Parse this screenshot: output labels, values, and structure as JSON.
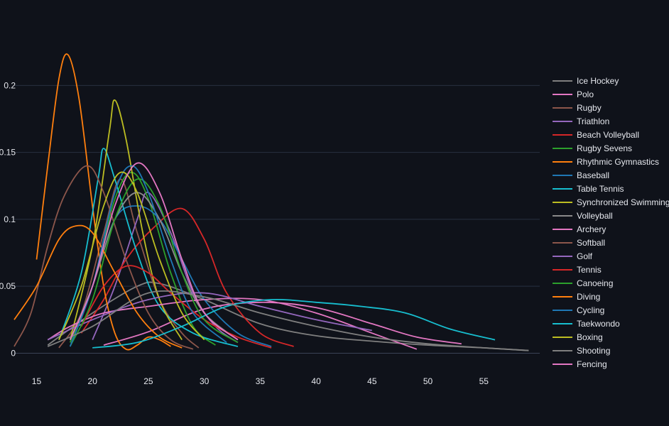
{
  "chart_data": {
    "type": "line",
    "title": "",
    "xlabel": "",
    "ylabel": "",
    "xlim": [
      13,
      60
    ],
    "ylim": [
      -0.004,
      0.232
    ],
    "x_ticks": [
      15,
      20,
      25,
      30,
      35,
      40,
      45,
      50,
      55
    ],
    "y_ticks": [
      0,
      0.05,
      0.1,
      0.15,
      0.2
    ],
    "y_tick_labels": [
      "0",
      "0.05",
      "0.1",
      "0.15",
      "0.2"
    ],
    "grid": "horizontal",
    "legend_position": "right",
    "background": "#0f121a",
    "gridline_color": "#283040",
    "series": [
      {
        "name": "Ice Hockey",
        "color": "#7f7f7f",
        "points": [
          [
            16,
            0.006
          ],
          [
            20,
            0.03
          ],
          [
            24,
            0.05
          ],
          [
            26,
            0.052
          ],
          [
            30,
            0.04
          ],
          [
            35,
            0.022
          ],
          [
            40,
            0.013
          ],
          [
            45,
            0.009
          ],
          [
            50,
            0.006
          ],
          [
            55,
            0.004
          ],
          [
            59,
            0.002
          ]
        ]
      },
      {
        "name": "Polo",
        "color": "#e377c2",
        "points": [
          [
            21,
            0.006
          ],
          [
            25,
            0.016
          ],
          [
            30,
            0.033
          ],
          [
            35,
            0.038
          ],
          [
            40,
            0.034
          ],
          [
            45,
            0.022
          ],
          [
            49,
            0.012
          ],
          [
            53,
            0.007
          ]
        ]
      },
      {
        "name": "Rugby",
        "color": "#8c564b",
        "points": [
          [
            17,
            0.004
          ],
          [
            19,
            0.03
          ],
          [
            21,
            0.09
          ],
          [
            22.5,
            0.13
          ],
          [
            24,
            0.09
          ],
          [
            26,
            0.04
          ],
          [
            28,
            0.015
          ],
          [
            29.5,
            0.004
          ]
        ]
      },
      {
        "name": "Triathlon",
        "color": "#9467bd",
        "points": [
          [
            20,
            0.01
          ],
          [
            22,
            0.05
          ],
          [
            24,
            0.1
          ],
          [
            25,
            0.12
          ],
          [
            27,
            0.09
          ],
          [
            29,
            0.045
          ],
          [
            31,
            0.02
          ],
          [
            33,
            0.008
          ]
        ]
      },
      {
        "name": "Beach Volleyball",
        "color": "#d62728",
        "points": [
          [
            19,
            0.015
          ],
          [
            21,
            0.04
          ],
          [
            23,
            0.07
          ],
          [
            25.5,
            0.094
          ],
          [
            28,
            0.108
          ],
          [
            30,
            0.085
          ],
          [
            32,
            0.045
          ],
          [
            35,
            0.015
          ],
          [
            38,
            0.005
          ]
        ]
      },
      {
        "name": "Rugby Sevens",
        "color": "#2ca02c",
        "points": [
          [
            18,
            0.008
          ],
          [
            20,
            0.05
          ],
          [
            22,
            0.115
          ],
          [
            23.5,
            0.135
          ],
          [
            25,
            0.115
          ],
          [
            27,
            0.06
          ],
          [
            29,
            0.02
          ],
          [
            31,
            0.006
          ]
        ]
      },
      {
        "name": "Rhythmic Gymnastics",
        "color": "#ff7f0e",
        "points": [
          [
            15,
            0.07
          ],
          [
            16,
            0.14
          ],
          [
            17,
            0.205
          ],
          [
            17.8,
            0.223
          ],
          [
            18.8,
            0.19
          ],
          [
            20,
            0.11
          ],
          [
            21,
            0.05
          ],
          [
            22,
            0.015
          ],
          [
            23,
            0.003
          ],
          [
            24,
            0.006
          ],
          [
            25,
            0.012
          ],
          [
            26,
            0.01
          ],
          [
            27,
            0.005
          ]
        ]
      },
      {
        "name": "Baseball",
        "color": "#1f77b4",
        "points": [
          [
            18,
            0.01
          ],
          [
            20,
            0.05
          ],
          [
            22,
            0.1
          ],
          [
            24,
            0.11
          ],
          [
            26,
            0.1
          ],
          [
            28,
            0.07
          ],
          [
            30,
            0.04
          ],
          [
            33,
            0.015
          ],
          [
            36,
            0.005
          ]
        ]
      },
      {
        "name": "Table Tennis",
        "color": "#17becf",
        "points": [
          [
            17,
            0.01
          ],
          [
            19,
            0.06
          ],
          [
            20.5,
            0.13
          ],
          [
            21,
            0.153
          ],
          [
            22,
            0.13
          ],
          [
            24,
            0.075
          ],
          [
            26,
            0.035
          ],
          [
            29,
            0.015
          ],
          [
            33,
            0.005
          ]
        ]
      },
      {
        "name": "Synchronized Swimming",
        "color": "#bcbd22",
        "points": [
          [
            18,
            0.01
          ],
          [
            20,
            0.08
          ],
          [
            21.5,
            0.165
          ],
          [
            22,
            0.189
          ],
          [
            23,
            0.16
          ],
          [
            24.5,
            0.09
          ],
          [
            26,
            0.04
          ],
          [
            28,
            0.01
          ]
        ]
      },
      {
        "name": "Volleyball",
        "color": "#8a8a8a",
        "points": [
          [
            18,
            0.01
          ],
          [
            20,
            0.05
          ],
          [
            22,
            0.1
          ],
          [
            24,
            0.12
          ],
          [
            26,
            0.1
          ],
          [
            28,
            0.06
          ],
          [
            30,
            0.03
          ],
          [
            33,
            0.01
          ]
        ]
      },
      {
        "name": "Archery",
        "color": "#e377c2",
        "points": [
          [
            16,
            0.01
          ],
          [
            18,
            0.02
          ],
          [
            21,
            0.03
          ],
          [
            25,
            0.035
          ],
          [
            30,
            0.04
          ],
          [
            35,
            0.04
          ],
          [
            40,
            0.03
          ],
          [
            45,
            0.015
          ],
          [
            49,
            0.003
          ]
        ]
      },
      {
        "name": "Softball",
        "color": "#8c564b",
        "points": [
          [
            13,
            0.005
          ],
          [
            14.5,
            0.03
          ],
          [
            16,
            0.08
          ],
          [
            17.5,
            0.118
          ],
          [
            19.5,
            0.14
          ],
          [
            21,
            0.12
          ],
          [
            23,
            0.07
          ],
          [
            25,
            0.03
          ],
          [
            27,
            0.01
          ],
          [
            29,
            0.003
          ]
        ]
      },
      {
        "name": "Golf",
        "color": "#9467bd",
        "points": [
          [
            16,
            0.01
          ],
          [
            20,
            0.025
          ],
          [
            25,
            0.04
          ],
          [
            30,
            0.045
          ],
          [
            35,
            0.035
          ],
          [
            40,
            0.025
          ],
          [
            45,
            0.017
          ]
        ]
      },
      {
        "name": "Tennis",
        "color": "#d62728",
        "points": [
          [
            19,
            0.02
          ],
          [
            21,
            0.05
          ],
          [
            23,
            0.065
          ],
          [
            25,
            0.06
          ],
          [
            27,
            0.045
          ],
          [
            30,
            0.025
          ],
          [
            33,
            0.012
          ],
          [
            36,
            0.004
          ]
        ]
      },
      {
        "name": "Canoeing",
        "color": "#2ca02c",
        "points": [
          [
            18,
            0.005
          ],
          [
            20,
            0.04
          ],
          [
            22,
            0.1
          ],
          [
            24,
            0.13
          ],
          [
            26,
            0.11
          ],
          [
            28,
            0.06
          ],
          [
            30,
            0.025
          ],
          [
            33,
            0.008
          ]
        ]
      },
      {
        "name": "Diving",
        "color": "#ff7f0e",
        "points": [
          [
            13,
            0.025
          ],
          [
            15,
            0.05
          ],
          [
            17,
            0.085
          ],
          [
            18.5,
            0.095
          ],
          [
            20,
            0.09
          ],
          [
            22,
            0.06
          ],
          [
            24,
            0.03
          ],
          [
            26,
            0.012
          ],
          [
            28,
            0.004
          ]
        ]
      },
      {
        "name": "Cycling",
        "color": "#1f77b4",
        "points": [
          [
            18,
            0.005
          ],
          [
            20,
            0.05
          ],
          [
            22,
            0.12
          ],
          [
            23.5,
            0.14
          ],
          [
            25,
            0.12
          ],
          [
            27,
            0.07
          ],
          [
            29,
            0.03
          ],
          [
            32,
            0.008
          ]
        ]
      },
      {
        "name": "Taekwondo",
        "color": "#17becf",
        "points": [
          [
            20,
            0.004
          ],
          [
            24,
            0.008
          ],
          [
            28,
            0.02
          ],
          [
            32,
            0.035
          ],
          [
            36,
            0.04
          ],
          [
            40,
            0.038
          ],
          [
            44,
            0.035
          ],
          [
            48,
            0.03
          ],
          [
            52,
            0.018
          ],
          [
            56,
            0.01
          ]
        ]
      },
      {
        "name": "Boxing",
        "color": "#bcbd22",
        "points": [
          [
            17,
            0.01
          ],
          [
            19,
            0.05
          ],
          [
            21,
            0.11
          ],
          [
            22.5,
            0.135
          ],
          [
            24,
            0.12
          ],
          [
            26,
            0.07
          ],
          [
            28,
            0.03
          ],
          [
            30,
            0.01
          ]
        ]
      },
      {
        "name": "Shooting",
        "color": "#7f7f7f",
        "points": [
          [
            16,
            0.005
          ],
          [
            20,
            0.02
          ],
          [
            25,
            0.045
          ],
          [
            30,
            0.042
          ],
          [
            35,
            0.03
          ],
          [
            40,
            0.02
          ],
          [
            45,
            0.012
          ],
          [
            50,
            0.007
          ],
          [
            55,
            0.004
          ],
          [
            59,
            0.002
          ]
        ]
      },
      {
        "name": "Fencing",
        "color": "#e377c2",
        "points": [
          [
            18,
            0.01
          ],
          [
            20,
            0.05
          ],
          [
            22,
            0.11
          ],
          [
            24,
            0.142
          ],
          [
            26,
            0.12
          ],
          [
            28,
            0.07
          ],
          [
            30,
            0.03
          ],
          [
            33,
            0.01
          ]
        ]
      }
    ]
  }
}
